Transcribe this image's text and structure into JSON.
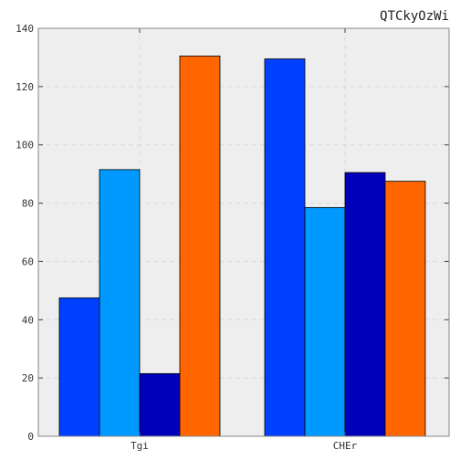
{
  "chart_data": {
    "type": "bar",
    "title": "QTCkyOzWi",
    "xlabel": "",
    "ylabel": "",
    "categories": [
      "Tgi",
      "CHEr"
    ],
    "ylim": [
      0,
      140
    ],
    "yticks": [
      0,
      20,
      40,
      60,
      80,
      100,
      120,
      140
    ],
    "grid": true,
    "series": [
      {
        "values": [
          47.5,
          129.5
        ],
        "color": "#0040ff"
      },
      {
        "values": [
          91.5,
          78.5
        ],
        "color": "#0099ff"
      },
      {
        "values": [
          21.5,
          90.5
        ],
        "color": "#0000bb"
      },
      {
        "values": [
          130.5,
          87.5
        ],
        "color": "#ff6600"
      }
    ]
  },
  "colors": {
    "plot_background": "#eeeeee",
    "grid": "#d9d9d9",
    "axis": "#888888"
  }
}
